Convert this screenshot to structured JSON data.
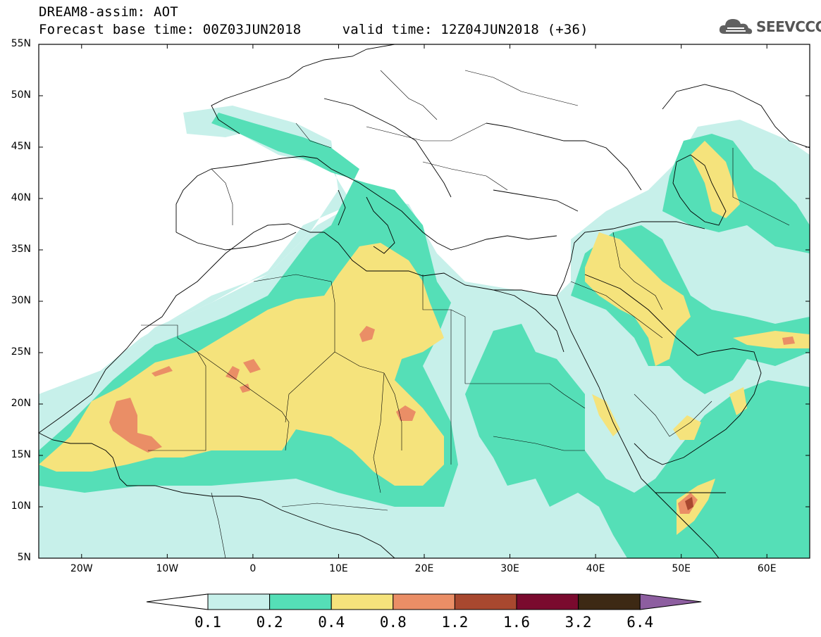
{
  "header": {
    "line1": "DREAM8-assim: AOT",
    "line2": "Forecast base time: 00Z03JUN2018     valid time: 12Z04JUN2018 (+36)"
  },
  "logo": {
    "text": "SEEVCCC",
    "icon": "cloud-icon"
  },
  "map": {
    "lat_labels": [
      "55N",
      "50N",
      "45N",
      "40N",
      "35N",
      "30N",
      "25N",
      "20N",
      "15N",
      "10N",
      "5N"
    ],
    "lon_labels": [
      "20W",
      "10W",
      "0",
      "10E",
      "20E",
      "30E",
      "40E",
      "50E",
      "60E"
    ]
  },
  "colorbar": {
    "labels": [
      "0.1",
      "0.2",
      "0.4",
      "0.8",
      "1.2",
      "1.6",
      "3.2",
      "6.4"
    ],
    "colors": [
      "#ffffff",
      "#c7f0ea",
      "#55dfb7",
      "#f5e37c",
      "#ea8e66",
      "#a8482f",
      "#7a0a2e",
      "#3d2914",
      "#8d5ea0"
    ]
  },
  "colors": {
    "level1": "#c7f0ea",
    "level2": "#55dfb7",
    "level3": "#f5e37c",
    "level4": "#ea8e66",
    "level5": "#a8482f"
  }
}
